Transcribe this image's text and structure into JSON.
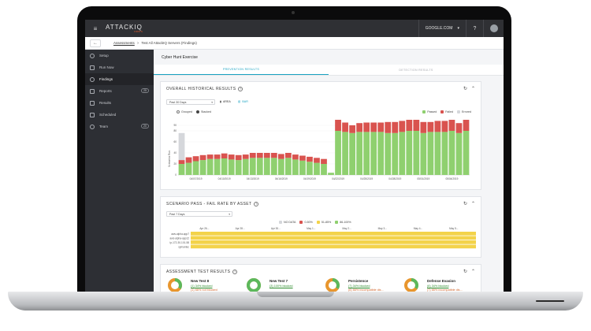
{
  "topbar": {
    "logo": "ATTACKIQ",
    "logo_sub": "FIRSTS",
    "org": "GOOGLE.COM",
    "help": "?",
    "menu": "≡",
    "caret": "▾"
  },
  "breadcrumb": {
    "back": "←",
    "link": "Assessments",
    "sep": ">",
    "current": "Test All AttackIQ Servers (Findings)"
  },
  "sidebar": {
    "items": [
      {
        "label": "Setup",
        "badge": ""
      },
      {
        "label": "Run Now",
        "badge": ""
      },
      {
        "label": "Findings",
        "badge": ""
      },
      {
        "label": "Reports",
        "badge": "25"
      },
      {
        "label": "Results",
        "badge": ""
      },
      {
        "label": "Scheduled",
        "badge": ""
      },
      {
        "label": "Team",
        "badge": "20"
      }
    ],
    "active_index": 2
  },
  "main": {
    "exercise_title": "Cyber Hunt Exercise",
    "tabs": [
      "PREVENTION RESULTS",
      "DETECTION RESULTS"
    ],
    "active_tab": 0
  },
  "historical": {
    "title": "OVERALL HISTORICAL RESULTS",
    "range_select": "Past 30 Days",
    "area_label": "AREA",
    "bar_label": "BAR",
    "legend_left": [
      "Grouped",
      "Stacked"
    ],
    "legend_right": [
      "Passed",
      "Failed",
      "Errored"
    ],
    "ylabel": "Scenarios Run"
  },
  "pass_fail": {
    "title": "SCENARIO PASS - FAIL RATE BY ASSET",
    "range_select": "Past 7 Days",
    "legend": [
      "NO DATA",
      "0-50%",
      "51-85%",
      "86-100%"
    ]
  },
  "assessment": {
    "title": "ASSESSMENT TEST RESULTS",
    "tests": [
      {
        "name": "New Test 8",
        "l1": "(1) 34% blocked",
        "l2": "(1) 66% not blocked",
        "pass": 0.34,
        "color": "#e8962e"
      },
      {
        "name": "New Test 7",
        "l1": "(3) 100% blocked",
        "l2": "",
        "pass": 1.0,
        "color": "#5cb85c"
      },
      {
        "name": "Persistence",
        "l1": "(7) 34% blocked",
        "l2": "(6) 66% incompatible dis...",
        "pass": 0.34,
        "color": "#e8962e"
      },
      {
        "name": "Defense Evasion",
        "l1": "(6) 34% blocked",
        "l2": "(7) 66% incompatible dis...",
        "pass": 0.34,
        "color": "#e8962e"
      },
      {
        "name": "Credential Access",
        "l1": "",
        "l2": "",
        "pass": 0.3,
        "color": "#d9534f"
      },
      {
        "name": "Execution",
        "l1": "",
        "l2": "",
        "pass": 0.8,
        "color": "#5cb85c"
      },
      {
        "name": "Exfiltration",
        "l1": "",
        "l2": "",
        "pass": 0.4,
        "color": "#e8962e"
      },
      {
        "name": "Command And Control",
        "l1": "",
        "l2": "",
        "pass": 0.4,
        "color": "#e8962e"
      }
    ]
  },
  "chart_data": [
    {
      "type": "bar",
      "title": "OVERALL HISTORICAL RESULTS",
      "ylabel": "Scenarios Run",
      "ylim": [
        0,
        100
      ],
      "yticks": [
        0,
        20,
        40,
        60,
        80,
        90
      ],
      "tick_labels": [
        "04/07/2019",
        "04/10/2019",
        "04/13/2019",
        "04/16/2019",
        "04/19/2019",
        "04/22/2019",
        "04/25/2019",
        "04/28/2019",
        "05/01/2019",
        "05/04/2019"
      ],
      "series": [
        {
          "name": "Passed",
          "color": "#8fd06f",
          "values": [
            20,
            22,
            25,
            27,
            29,
            29,
            30,
            28,
            27,
            29,
            31,
            31,
            31,
            31,
            29,
            31,
            28,
            26,
            24,
            22,
            20,
            4,
            80,
            78,
            76,
            78,
            78,
            78,
            78,
            76,
            76,
            78,
            80,
            80,
            76,
            78,
            78,
            78,
            80,
            76,
            80
          ]
        },
        {
          "name": "Failed",
          "color": "#d9534f",
          "values": [
            7,
            10,
            9,
            9,
            8,
            8,
            9,
            9,
            9,
            8,
            9,
            9,
            9,
            9,
            9,
            9,
            9,
            9,
            9,
            9,
            9,
            0,
            20,
            17,
            14,
            16,
            17,
            17,
            17,
            20,
            20,
            20,
            20,
            20,
            20,
            18,
            20,
            20,
            20,
            18,
            20
          ]
        },
        {
          "name": "Errored",
          "color": "#d5d7db",
          "values": [
            49,
            0,
            0,
            0,
            0,
            0,
            0,
            0,
            0,
            0,
            0,
            0,
            0,
            0,
            0,
            0,
            0,
            0,
            0,
            0,
            0,
            0,
            0,
            0,
            0,
            0,
            0,
            0,
            0,
            0,
            0,
            0,
            0,
            0,
            0,
            0,
            0,
            0,
            0,
            0,
            0
          ]
        }
      ]
    },
    {
      "type": "heatmap",
      "title": "SCENARIO PASS - FAIL RATE BY ASSET",
      "rows": [
        "aws-alpha-app7",
        "aws-alpha-app12",
        "ip-172-30-101-58",
        "symantec"
      ],
      "columns": [
        "Apr 26...",
        "Apr 28...",
        "Apr 30...",
        "May 1...",
        "May 2...",
        "May 3...",
        "May 4...",
        "May 5..."
      ],
      "category": "51-85%",
      "color": "#f3d34a"
    }
  ]
}
